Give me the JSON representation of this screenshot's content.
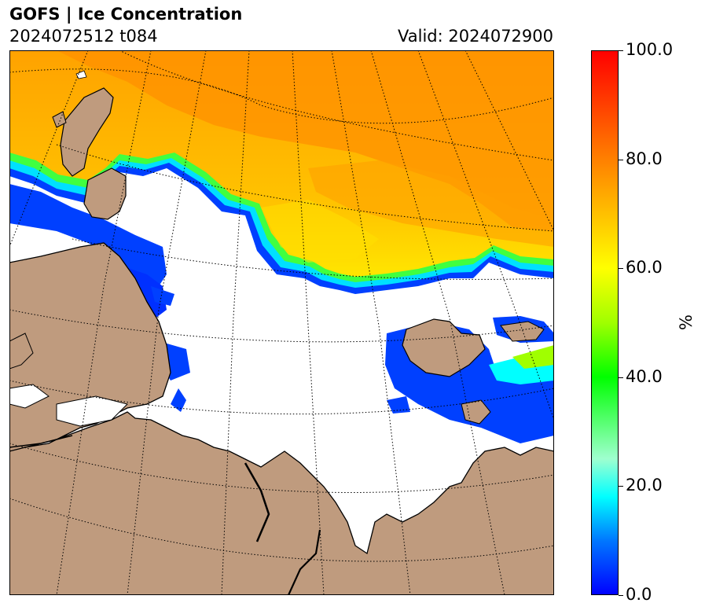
{
  "header": {
    "title": "GOFS  |  Ice Concentration",
    "run": "2024072512 t084",
    "valid": "Valid: 2024072900"
  },
  "colorbar": {
    "unit": "%",
    "ticks": [
      "0.0",
      "20.0",
      "40.0",
      "60.0",
      "80.0",
      "100.0"
    ],
    "tick_values": [
      0,
      20,
      40,
      60,
      80,
      100
    ],
    "min": 0,
    "max": 100
  },
  "colors": {
    "land": "#bf9b7e",
    "ocean_open": "#ffffff",
    "coastline": "#000000",
    "ice_high": "#ff9a00",
    "ice_mid": "#ffd400",
    "ice_edge": "#0033ff"
  },
  "legend_colors": [
    "#0000ff",
    "#00c8ff",
    "#00ffff",
    "#9fffcf",
    "#00ff00",
    "#a0ff00",
    "#ffff00",
    "#ffc000",
    "#ff8000",
    "#ff0000"
  ]
}
